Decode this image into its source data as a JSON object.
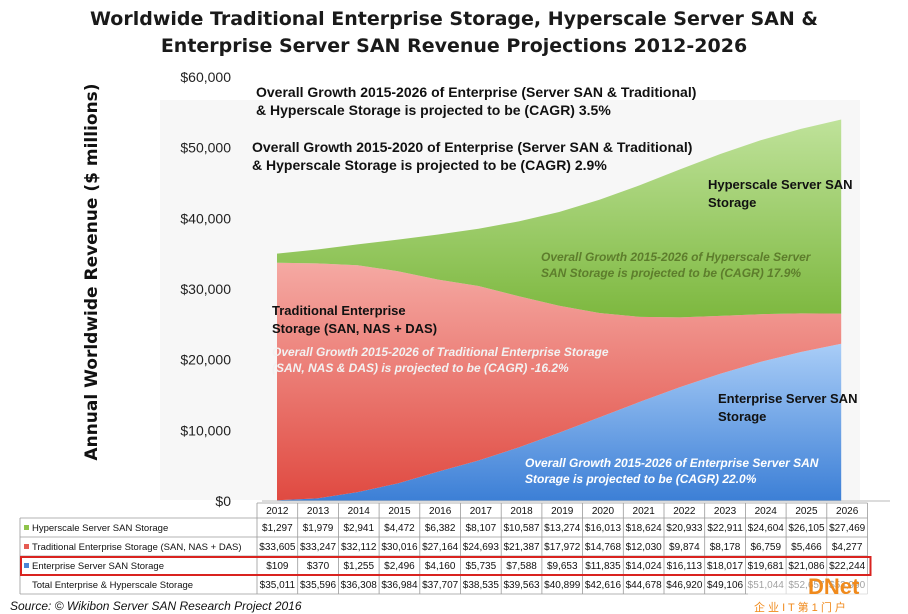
{
  "chart_data": {
    "type": "area",
    "stacked": true,
    "title_line1": "Worldwide Traditional Enterprise Storage, Hyperscale Server SAN &",
    "title_line2": "Enterprise Server SAN Revenue Projections 2012-2026",
    "ylabel": "Annual Worldwide Revenue ($ millions)",
    "ylim": [
      0,
      60000
    ],
    "yticks": [
      "$0",
      "$10,000",
      "$20,000",
      "$30,000",
      "$40,000",
      "$50,000",
      "$60,000"
    ],
    "x": [
      "2012",
      "2013",
      "2014",
      "2015",
      "2016",
      "2017",
      "2018",
      "2019",
      "2020",
      "2021",
      "2022",
      "2023",
      "2024",
      "2025",
      "2026"
    ],
    "series": [
      {
        "name": "Enterprise Server SAN Storage",
        "color": "#4a86d6",
        "values": [
          109,
          370,
          1255,
          2496,
          4160,
          5735,
          7588,
          9653,
          11835,
          14024,
          16113,
          18017,
          19681,
          21086,
          22244
        ],
        "labels": [
          "$109",
          "$370",
          "$1,255",
          "$2,496",
          "$4,160",
          "$5,735",
          "$7,588",
          "$9,653",
          "$11,835",
          "$14,024",
          "$16,113",
          "$18,017",
          "$19,681",
          "$21,086",
          "$22,244"
        ]
      },
      {
        "name": "Traditional Enterprise Storage (SAN, NAS + DAS)",
        "color": "#e65b52",
        "values": [
          33605,
          33247,
          32112,
          30016,
          27164,
          24693,
          21387,
          17972,
          14768,
          12030,
          9874,
          8178,
          6759,
          5466,
          4277
        ],
        "labels": [
          "$33,605",
          "$33,247",
          "$32,112",
          "$30,016",
          "$27,164",
          "$24,693",
          "$21,387",
          "$17,972",
          "$14,768",
          "$12,030",
          "$9,874",
          "$8,178",
          "$6,759",
          "$5,466",
          "$4,277"
        ]
      },
      {
        "name": "Hyperscale Server SAN Storage",
        "color": "#8fc44a",
        "values": [
          1297,
          1979,
          2941,
          4472,
          6382,
          8107,
          10587,
          13274,
          16013,
          18624,
          20933,
          22911,
          24604,
          26105,
          27469
        ],
        "labels": [
          "$1,297",
          "$1,979",
          "$2,941",
          "$4,472",
          "$6,382",
          "$8,107",
          "$10,587",
          "$13,274",
          "$16,013",
          "$18,624",
          "$20,933",
          "$22,911",
          "$24,604",
          "$26,105",
          "$27,469"
        ]
      }
    ],
    "total_row": {
      "name": "Total Enterprise & Hyperscale Storage",
      "labels": [
        "$35,011",
        "$35,596",
        "$36,308",
        "$36,984",
        "$37,707",
        "$38,535",
        "$39,563",
        "$40,899",
        "$42,616",
        "$44,678",
        "$46,920",
        "$49,106",
        "$51,044",
        "$52,657",
        "$53,990"
      ]
    },
    "highlighted_row": "Enterprise Server SAN Storage",
    "annotations": {
      "overall_2026": [
        "Overall Growth 2015-2026 of Enterprise (Server SAN & Traditional)",
        "& Hyperscale Storage is projected to be (CAGR) 3.5%"
      ],
      "overall_2020": [
        "Overall Growth 2015-2020 of Enterprise (Server SAN & Traditional)",
        "& Hyperscale Storage is projected to be (CAGR) 2.9%"
      ],
      "hyperscale_label": [
        "Hyperscale Server SAN",
        "Storage"
      ],
      "hyperscale_growth": [
        "Overall Growth 2015-2026 of Hyperscale Server",
        "SAN Storage is projected to be (CAGR) 17.9%"
      ],
      "traditional_label": [
        "Traditional Enterprise",
        "Storage (SAN, NAS + DAS)"
      ],
      "traditional_growth": [
        "Overall Growth 2015-2026 of Traditional Enterprise Storage",
        "(SAN, NAS & DAS) is projected to be (CAGR) -16.2%"
      ],
      "enterprise_label": [
        "Enterprise Server SAN",
        "Storage"
      ],
      "enterprise_growth": [
        "Overall Growth 2015-2026 of Enterprise Server SAN",
        "Storage is projected to be (CAGR) 22.0%"
      ]
    },
    "colors": {
      "hyper_text": "#5d7d2c",
      "trad_text": "#f2f2f2",
      "ent_text": "#ffffff"
    },
    "source": "Source: © Wikibon Server SAN Research Project 2016",
    "watermark": {
      "brand": "DNet",
      "tagline": "企 业 I T 第 1 门 户"
    }
  }
}
